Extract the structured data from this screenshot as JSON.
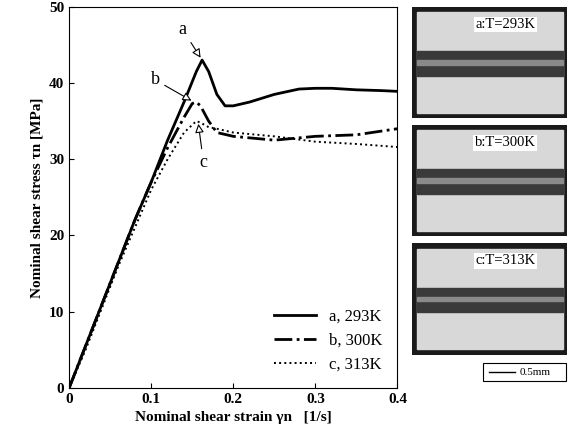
{
  "chart_data": {
    "type": "line",
    "x_label": "Nominal shear strain γn   [1/s]",
    "y_label": "Nominal shear stress τn [MPa]",
    "xlim": [
      0,
      0.4
    ],
    "xticks": [
      0,
      0.1,
      0.2,
      0.3,
      0.4
    ],
    "ylim": [
      0,
      50
    ],
    "yticks": [
      0,
      10,
      20,
      30,
      40,
      50
    ],
    "legend": "lower right",
    "series": [
      {
        "name": "a, 293K",
        "color": "#000000",
        "line_style": "solid",
        "x": [
          0,
          0.02,
          0.04,
          0.06,
          0.08,
          0.1,
          0.12,
          0.14,
          0.155,
          0.162,
          0.17,
          0.18,
          0.19,
          0.2,
          0.22,
          0.25,
          0.28,
          0.3,
          0.32,
          0.35,
          0.38,
          0.4
        ],
        "values": [
          0,
          5.5,
          11,
          16.5,
          22,
          27,
          32.5,
          37.5,
          41.5,
          43,
          41.5,
          38.5,
          37,
          37,
          37.5,
          38.5,
          39.2,
          39.3,
          39.3,
          39.1,
          39,
          38.9
        ]
      },
      {
        "name": "b, 300K",
        "color": "#000000",
        "line_style": "dashdot",
        "x": [
          0,
          0.02,
          0.04,
          0.06,
          0.08,
          0.1,
          0.12,
          0.14,
          0.15,
          0.155,
          0.16,
          0.17,
          0.18,
          0.2,
          0.25,
          0.3,
          0.35,
          0.4
        ],
        "values": [
          0,
          5.5,
          11,
          16.5,
          22,
          27,
          31.5,
          35.5,
          37.3,
          37.5,
          37,
          35,
          33.5,
          33,
          32.5,
          33,
          33.2,
          34
        ]
      },
      {
        "name": "c, 313K",
        "color": "#000000",
        "line_style": "dotted",
        "x": [
          0,
          0.02,
          0.04,
          0.06,
          0.08,
          0.1,
          0.12,
          0.14,
          0.15,
          0.155,
          0.16,
          0.17,
          0.18,
          0.2,
          0.25,
          0.3,
          0.35,
          0.4
        ],
        "values": [
          0,
          5,
          10.5,
          16,
          21,
          26,
          30,
          33.5,
          34.5,
          35,
          34.8,
          34.2,
          34,
          33.5,
          33,
          32.3,
          32,
          31.6
        ]
      }
    ],
    "annotations": [
      {
        "text": "a",
        "x": 0.162,
        "y": 43
      },
      {
        "text": "b",
        "x": 0.152,
        "y": 37.5
      },
      {
        "text": "c",
        "x": 0.157,
        "y": 35
      }
    ],
    "insets": [
      {
        "label": "a:T=293K"
      },
      {
        "label": "b:T=300K"
      },
      {
        "label": "c:T=313K"
      }
    ],
    "scale_bar": "0.5mm"
  }
}
